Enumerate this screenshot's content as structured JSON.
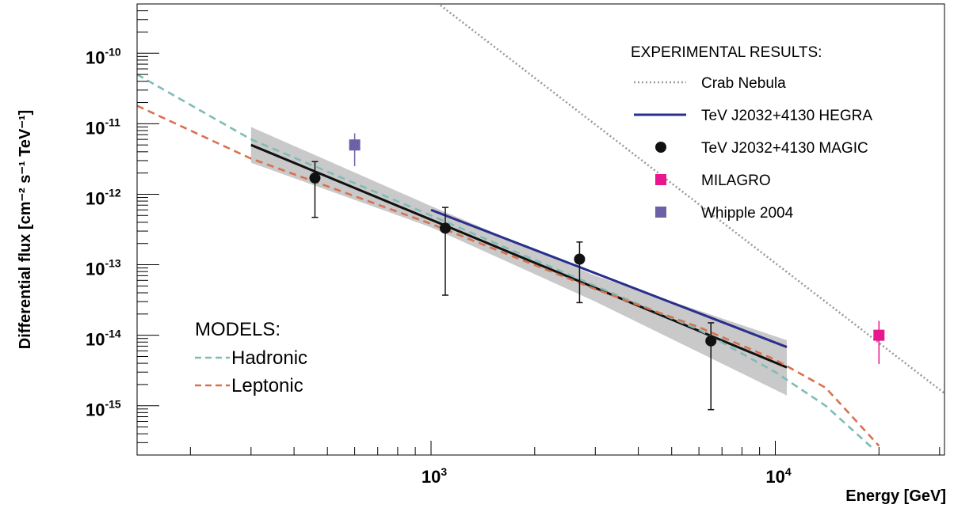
{
  "chart_data": {
    "type": "line",
    "title": "",
    "xlabel": "Energy [GeV]",
    "ylabel": "Differential flux [cm⁻² s⁻¹ TeV⁻¹]",
    "x_scale": "log",
    "y_scale": "log",
    "xlim": [
      140,
      31000
    ],
    "ylim": [
      2e-16,
      5e-10
    ],
    "x_ticks": [
      {
        "value": 1000,
        "base": "10",
        "exp": "3"
      },
      {
        "value": 10000,
        "base": "10",
        "exp": "4"
      }
    ],
    "y_ticks": [
      {
        "value": 1e-10,
        "base": "10",
        "exp": "-10"
      },
      {
        "value": 1e-11,
        "base": "10",
        "exp": "-11"
      },
      {
        "value": 1e-12,
        "base": "10",
        "exp": "-12"
      },
      {
        "value": 1e-13,
        "base": "10",
        "exp": "-13"
      },
      {
        "value": 1e-14,
        "base": "10",
        "exp": "-14"
      },
      {
        "value": 1e-15,
        "base": "10",
        "exp": "-15"
      }
    ],
    "legend_experimental": {
      "heading": "EXPERIMENTAL RESULTS:",
      "placement": "top-right",
      "entries": [
        {
          "label": "Crab Nebula",
          "style": "dotted-line",
          "color": "#9a9a9a"
        },
        {
          "label": "TeV J2032+4130 HEGRA",
          "style": "solid-line",
          "color": "#2a2f8c"
        },
        {
          "label": "TeV J2032+4130 MAGIC",
          "style": "circle",
          "color": "#111111"
        },
        {
          "label": "MILAGRO",
          "style": "square",
          "color": "#e8168f"
        },
        {
          "label": "Whipple 2004",
          "style": "square",
          "color": "#6b62a6"
        }
      ]
    },
    "legend_models": {
      "heading": "MODELS:",
      "placement": "bottom-left",
      "entries": [
        {
          "label": "Hadronic",
          "style": "dashed-line",
          "color": "#7fbcb6"
        },
        {
          "label": "Leptonic",
          "style": "dashed-line",
          "color": "#d9714f"
        }
      ]
    },
    "series": [
      {
        "name": "Crab Nebula",
        "kind": "dotted",
        "color": "#9a9a9a",
        "x": [
          900,
          31000
        ],
        "y": [
          9e-10,
          1.5e-15
        ]
      },
      {
        "name": "TeV J2032+4130 HEGRA",
        "kind": "solid",
        "color": "#2a2f8c",
        "x": [
          1000,
          10800
        ],
        "y": [
          6e-13,
          6.8e-15
        ]
      },
      {
        "name": "MAGIC fit",
        "kind": "solid",
        "color": "#111111",
        "x": [
          300,
          10800
        ],
        "y": [
          5e-12,
          3.5e-15
        ]
      },
      {
        "name": "Hadronic",
        "kind": "dashed",
        "color": "#7fbcb6",
        "x": [
          140,
          300,
          1000,
          3000,
          6000,
          10000,
          14000,
          19000
        ],
        "y": [
          5e-11,
          6e-12,
          5e-13,
          5e-14,
          1.2e-14,
          3e-15,
          1e-15,
          2.6e-16
        ]
      },
      {
        "name": "Leptonic",
        "kind": "dashed",
        "color": "#d9714f",
        "x": [
          140,
          300,
          1000,
          3000,
          6000,
          10000,
          14000,
          20000
        ],
        "y": [
          1.8e-11,
          3.2e-12,
          3.8e-13,
          4.5e-14,
          1.3e-14,
          4.5e-15,
          1.8e-15,
          2.7e-16
        ]
      }
    ],
    "magic_band": {
      "color": "#c9c9c9",
      "upper": {
        "x": [
          300,
          1000,
          3000,
          10800
        ],
        "y": [
          9e-12,
          6.8e-13,
          7e-14,
          8.5e-15
        ]
      },
      "lower": {
        "x": [
          300,
          1000,
          3000,
          10800
        ],
        "y": [
          2.8e-12,
          3.4e-13,
          3e-14,
          1.4e-15
        ]
      }
    },
    "points": [
      {
        "name": "TeV J2032+4130 MAGIC",
        "marker": "circle",
        "color": "#111111",
        "data": [
          {
            "x": 460,
            "y": 1.7e-12,
            "ylow": 4.7e-13,
            "yhigh": 2.9e-12
          },
          {
            "x": 1100,
            "y": 3.3e-13,
            "ylow": 3.7e-14,
            "yhigh": 6.5e-13
          },
          {
            "x": 2700,
            "y": 1.2e-13,
            "ylow": 2.9e-14,
            "yhigh": 2.1e-13
          },
          {
            "x": 6500,
            "y": 8.3e-15,
            "ylow": 8.8e-16,
            "yhigh": 1.5e-14
          }
        ]
      },
      {
        "name": "Whipple 2004",
        "marker": "square",
        "color": "#6b62a6",
        "data": [
          {
            "x": 600,
            "y": 5e-12,
            "ylow": 2.5e-12,
            "yhigh": 7.3e-12
          }
        ]
      },
      {
        "name": "MILAGRO",
        "marker": "square",
        "color": "#e8168f",
        "data": [
          {
            "x": 20000,
            "y": 1e-14,
            "ylow": 3.9e-15,
            "yhigh": 1.6e-14
          }
        ]
      }
    ]
  }
}
